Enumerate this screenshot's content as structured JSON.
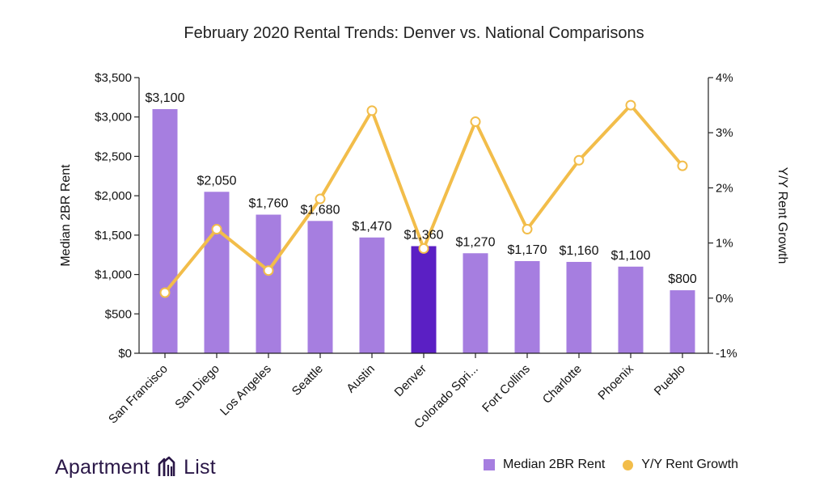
{
  "chart_data": {
    "type": "bar",
    "title": "February 2020 Rental Trends: Denver vs. National Comparisons",
    "categories": [
      "San Francisco",
      "San Diego",
      "Los Angeles",
      "Seattle",
      "Austin",
      "Denver",
      "Colorado Spri...",
      "Fort Collins",
      "Charlotte",
      "Phoenix",
      "Pueblo"
    ],
    "series": [
      {
        "name": "Median 2BR Rent",
        "type": "bar",
        "axis": "left",
        "values": [
          3100,
          2050,
          1760,
          1680,
          1470,
          1360,
          1270,
          1170,
          1160,
          1100,
          800
        ],
        "data_labels": [
          "$3,100",
          "$2,050",
          "$1,760",
          "$1,680",
          "$1,470",
          "$1,360",
          "$1,270",
          "$1,170",
          "$1,160",
          "$1,100",
          "$800"
        ],
        "color": "#a67ee0",
        "highlight_category": "Denver",
        "highlight_color": "#5b1fc4"
      },
      {
        "name": "Y/Y Rent Growth",
        "type": "line",
        "axis": "right",
        "values": [
          0.1,
          1.25,
          0.5,
          1.8,
          3.4,
          0.9,
          3.2,
          1.25,
          2.5,
          3.5,
          2.4
        ],
        "color": "#f2bd4a"
      }
    ],
    "ylabel": "Median 2BR Rent",
    "y2label": "Y/Y Rent Growth",
    "ylim": [
      0,
      3500
    ],
    "y2lim": [
      -1,
      4
    ],
    "yticks": [
      0,
      500,
      1000,
      1500,
      2000,
      2500,
      3000,
      3500
    ],
    "ytick_labels": [
      "$0",
      "$500",
      "$1,000",
      "$1,500",
      "$2,000",
      "$2,500",
      "$3,000",
      "$3,500"
    ],
    "y2ticks": [
      -1,
      0,
      1,
      2,
      3,
      4
    ],
    "y2tick_labels": [
      "-1%",
      "0%",
      "1%",
      "2%",
      "3%",
      "4%"
    ],
    "grid": false,
    "legend": "bottom-right"
  },
  "branding": {
    "logo_word_1": "Apartment",
    "logo_word_2": "List",
    "logo_icon": "apartment-list-building-icon"
  }
}
